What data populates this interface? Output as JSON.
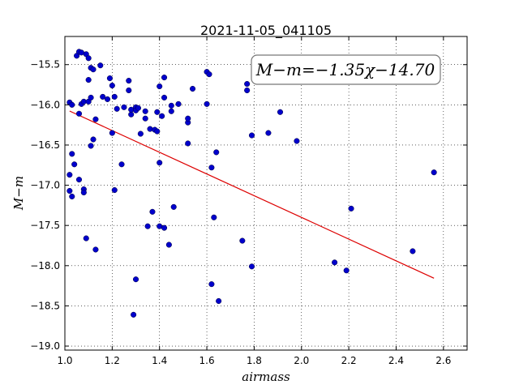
{
  "chart_data": {
    "type": "scatter",
    "title": "2021-11-05_041105",
    "xlabel": "airmass",
    "ylabel": "M−m",
    "xlim": [
      1.0,
      2.7
    ],
    "ylim": [
      -19.05,
      -15.15
    ],
    "y_inverted": true,
    "grid": true,
    "xticks": [
      "1.0",
      "1.2",
      "1.4",
      "1.6",
      "1.8",
      "2.0",
      "2.2",
      "2.4",
      "2.6"
    ],
    "yticks": [
      "−15.5",
      "−16.0",
      "−16.5",
      "−17.0",
      "−17.5",
      "−18.0",
      "−18.5",
      "−19.0"
    ],
    "annotation": "M−m=−1.35χ−14.70",
    "point_color": "#0000cc",
    "fit_color": "#dd0000",
    "fit": {
      "slope": -1.35,
      "intercept": -14.7,
      "x_range": [
        1.02,
        2.56
      ]
    },
    "points": [
      {
        "x": 1.02,
        "y": -15.97
      },
      {
        "x": 1.03,
        "y": -16.0
      },
      {
        "x": 1.02,
        "y": -16.87
      },
      {
        "x": 1.02,
        "y": -17.07
      },
      {
        "x": 1.03,
        "y": -17.14
      },
      {
        "x": 1.03,
        "y": -16.61
      },
      {
        "x": 1.04,
        "y": -16.74
      },
      {
        "x": 1.05,
        "y": -15.39
      },
      {
        "x": 1.06,
        "y": -15.34
      },
      {
        "x": 1.07,
        "y": -15.35
      },
      {
        "x": 1.06,
        "y": -16.11
      },
      {
        "x": 1.06,
        "y": -16.93
      },
      {
        "x": 1.07,
        "y": -15.99
      },
      {
        "x": 1.08,
        "y": -15.96
      },
      {
        "x": 1.08,
        "y": -17.05
      },
      {
        "x": 1.08,
        "y": -17.09
      },
      {
        "x": 1.09,
        "y": -17.66
      },
      {
        "x": 1.09,
        "y": -15.37
      },
      {
        "x": 1.1,
        "y": -15.42
      },
      {
        "x": 1.1,
        "y": -15.96
      },
      {
        "x": 1.1,
        "y": -15.69
      },
      {
        "x": 1.11,
        "y": -15.54
      },
      {
        "x": 1.12,
        "y": -15.56
      },
      {
        "x": 1.11,
        "y": -15.91
      },
      {
        "x": 1.11,
        "y": -16.51
      },
      {
        "x": 1.12,
        "y": -16.43
      },
      {
        "x": 1.13,
        "y": -17.8
      },
      {
        "x": 1.13,
        "y": -16.18
      },
      {
        "x": 1.15,
        "y": -15.51
      },
      {
        "x": 1.16,
        "y": -15.9
      },
      {
        "x": 1.18,
        "y": -15.93
      },
      {
        "x": 1.19,
        "y": -15.67
      },
      {
        "x": 1.2,
        "y": -15.76
      },
      {
        "x": 1.21,
        "y": -15.9
      },
      {
        "x": 1.2,
        "y": -16.35
      },
      {
        "x": 1.21,
        "y": -17.06
      },
      {
        "x": 1.22,
        "y": -16.05
      },
      {
        "x": 1.24,
        "y": -16.74
      },
      {
        "x": 1.25,
        "y": -16.03
      },
      {
        "x": 1.27,
        "y": -15.7
      },
      {
        "x": 1.27,
        "y": -15.82
      },
      {
        "x": 1.28,
        "y": -16.12
      },
      {
        "x": 1.28,
        "y": -16.06
      },
      {
        "x": 1.29,
        "y": -18.61
      },
      {
        "x": 1.3,
        "y": -16.03
      },
      {
        "x": 1.3,
        "y": -16.07
      },
      {
        "x": 1.3,
        "y": -18.17
      },
      {
        "x": 1.31,
        "y": -16.04
      },
      {
        "x": 1.32,
        "y": -16.36
      },
      {
        "x": 1.34,
        "y": -16.08
      },
      {
        "x": 1.34,
        "y": -16.17
      },
      {
        "x": 1.35,
        "y": -17.51
      },
      {
        "x": 1.36,
        "y": -16.3
      },
      {
        "x": 1.37,
        "y": -17.33
      },
      {
        "x": 1.38,
        "y": -16.31
      },
      {
        "x": 1.39,
        "y": -16.33
      },
      {
        "x": 1.39,
        "y": -16.09
      },
      {
        "x": 1.4,
        "y": -15.77
      },
      {
        "x": 1.4,
        "y": -17.51
      },
      {
        "x": 1.4,
        "y": -16.72
      },
      {
        "x": 1.41,
        "y": -16.14
      },
      {
        "x": 1.42,
        "y": -15.91
      },
      {
        "x": 1.42,
        "y": -15.66
      },
      {
        "x": 1.42,
        "y": -17.53
      },
      {
        "x": 1.44,
        "y": -17.74
      },
      {
        "x": 1.45,
        "y": -16.08
      },
      {
        "x": 1.45,
        "y": -16.01
      },
      {
        "x": 1.46,
        "y": -17.27
      },
      {
        "x": 1.48,
        "y": -15.99
      },
      {
        "x": 1.52,
        "y": -16.22
      },
      {
        "x": 1.52,
        "y": -16.17
      },
      {
        "x": 1.52,
        "y": -16.48
      },
      {
        "x": 1.54,
        "y": -15.8
      },
      {
        "x": 1.6,
        "y": -15.59
      },
      {
        "x": 1.61,
        "y": -15.62
      },
      {
        "x": 1.6,
        "y": -15.99
      },
      {
        "x": 1.62,
        "y": -18.23
      },
      {
        "x": 1.62,
        "y": -16.78
      },
      {
        "x": 1.63,
        "y": -17.4
      },
      {
        "x": 1.64,
        "y": -16.59
      },
      {
        "x": 1.65,
        "y": -18.44
      },
      {
        "x": 1.75,
        "y": -17.69
      },
      {
        "x": 1.77,
        "y": -15.74
      },
      {
        "x": 1.77,
        "y": -15.82
      },
      {
        "x": 1.79,
        "y": -16.38
      },
      {
        "x": 1.79,
        "y": -18.01
      },
      {
        "x": 1.86,
        "y": -16.35
      },
      {
        "x": 1.91,
        "y": -16.09
      },
      {
        "x": 1.98,
        "y": -16.45
      },
      {
        "x": 2.14,
        "y": -17.96
      },
      {
        "x": 2.19,
        "y": -18.06
      },
      {
        "x": 2.21,
        "y": -17.29
      },
      {
        "x": 2.47,
        "y": -17.82
      },
      {
        "x": 2.56,
        "y": -16.84
      }
    ]
  }
}
